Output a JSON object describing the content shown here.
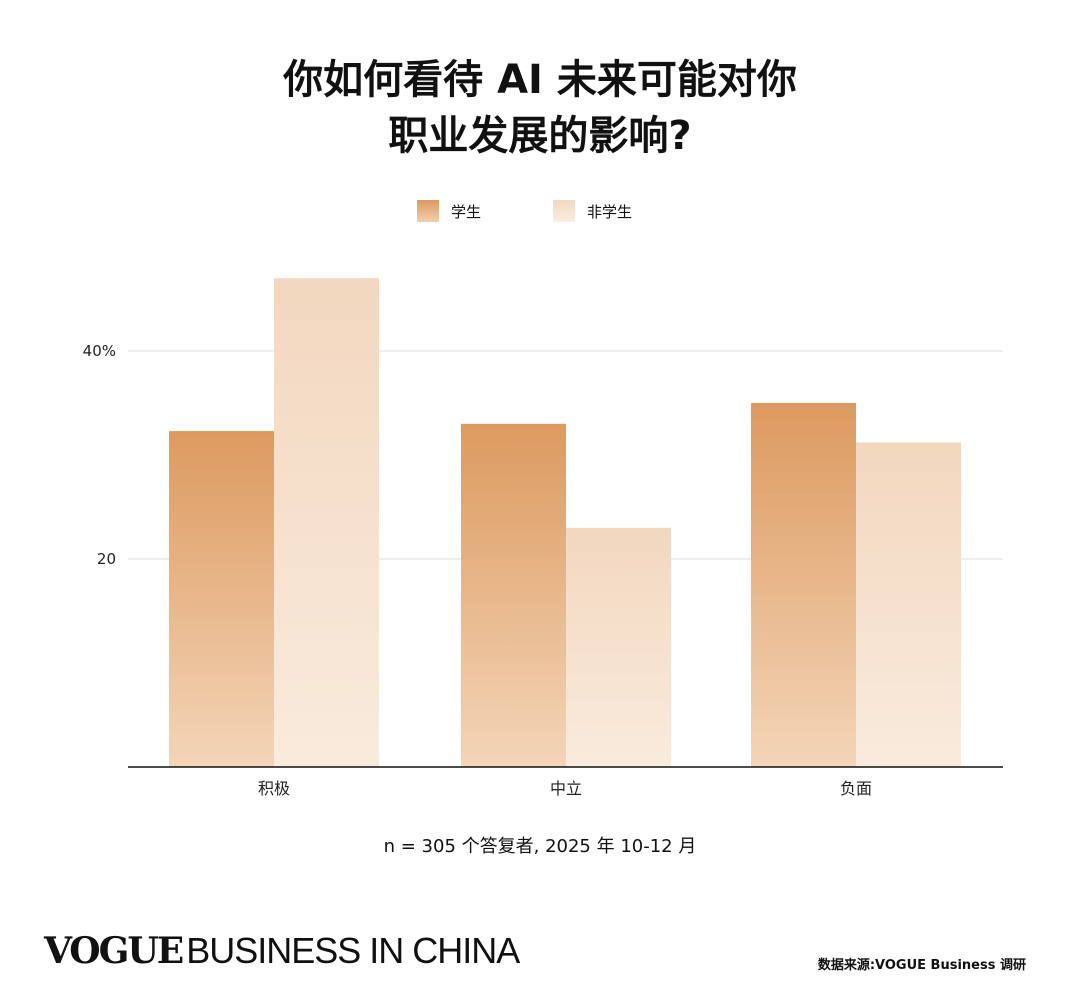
{
  "title_lines": [
    "你如何看待 AI 未来可能对你",
    "职业发展的影响?"
  ],
  "legend": [
    {
      "label": "学生",
      "color": "#DC9A5F"
    },
    {
      "label": "非学生",
      "color": "#F3D7BF"
    }
  ],
  "note": "n = 305 个答复者, 2025 年 10-12 月",
  "brand": {
    "vogue": "VOGUE",
    "rest": "BUSINESS IN CHINA"
  },
  "source": "数据来源:VOGUE Business 调研",
  "chart_data": {
    "type": "bar",
    "categories": [
      "积极",
      "中立",
      "负面"
    ],
    "series": [
      {
        "name": "学生",
        "values": [
          32.3,
          33,
          35
        ],
        "color": "#DC9A5F"
      },
      {
        "name": "非学生",
        "values": [
          47,
          23,
          31.2
        ],
        "color": "#F3D7BF"
      }
    ],
    "ylim": [
      0,
      50
    ],
    "yticks": [
      {
        "value": 20,
        "label": "20"
      },
      {
        "value": 40,
        "label": "40%"
      }
    ],
    "grid": true,
    "legend_position": "top-center"
  }
}
